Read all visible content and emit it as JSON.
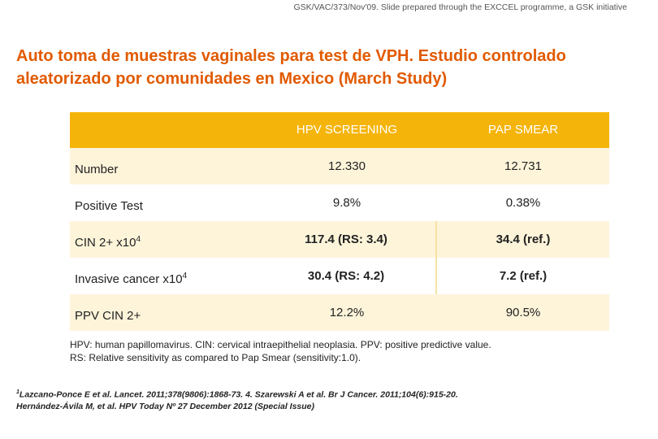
{
  "header_note": "GSK/VAC/373/Nov'09. Slide prepared through the EXCCEL programme, a GSK initiative",
  "title_line1": "Auto toma de muestras vaginales para test de VPH. Estudio controlado",
  "title_line2": "aleatorizado por comunidades en Mexico (March Study)",
  "table": {
    "col1_header": "HPV SCREENING",
    "col2_header": "PAP SMEAR",
    "rows": [
      {
        "label": "Number",
        "sup": "",
        "v1": "12.330",
        "v2": "12.731"
      },
      {
        "label": "Positive Test",
        "sup": "",
        "v1": "9.8%",
        "v2": "0.38%"
      },
      {
        "label": "CIN 2+ x10",
        "sup": "4",
        "v1": "117.4 (RS: 3.4)",
        "v2": "34.4 (ref.)"
      },
      {
        "label": "Invasive cancer x10",
        "sup": "4",
        "v1": "30.4 (RS: 4.2)",
        "v2": "7.2 (ref.)"
      },
      {
        "label": "PPV CIN 2+",
        "sup": "",
        "v1": "12.2%",
        "v2": "90.5%"
      }
    ]
  },
  "notes_line1": "HPV: human papillomavirus. CIN: cervical intraepithelial neoplasia. PPV: positive predictive value.",
  "notes_line2": "RS: Relative sensitivity as compared to Pap Smear (sensitivity:1.0).",
  "ref_marker": "1",
  "ref_line1": "Lazcano-Ponce E et al. Lancet. 2011;378(9806):1868-73. 4. Szarewski A et al. Br J Cancer. 2011;104(6):915-20.",
  "ref_line2": "Hernández-Ávila M, et al. HPV Today Nº 27 December 2012 (Special Issue)"
}
